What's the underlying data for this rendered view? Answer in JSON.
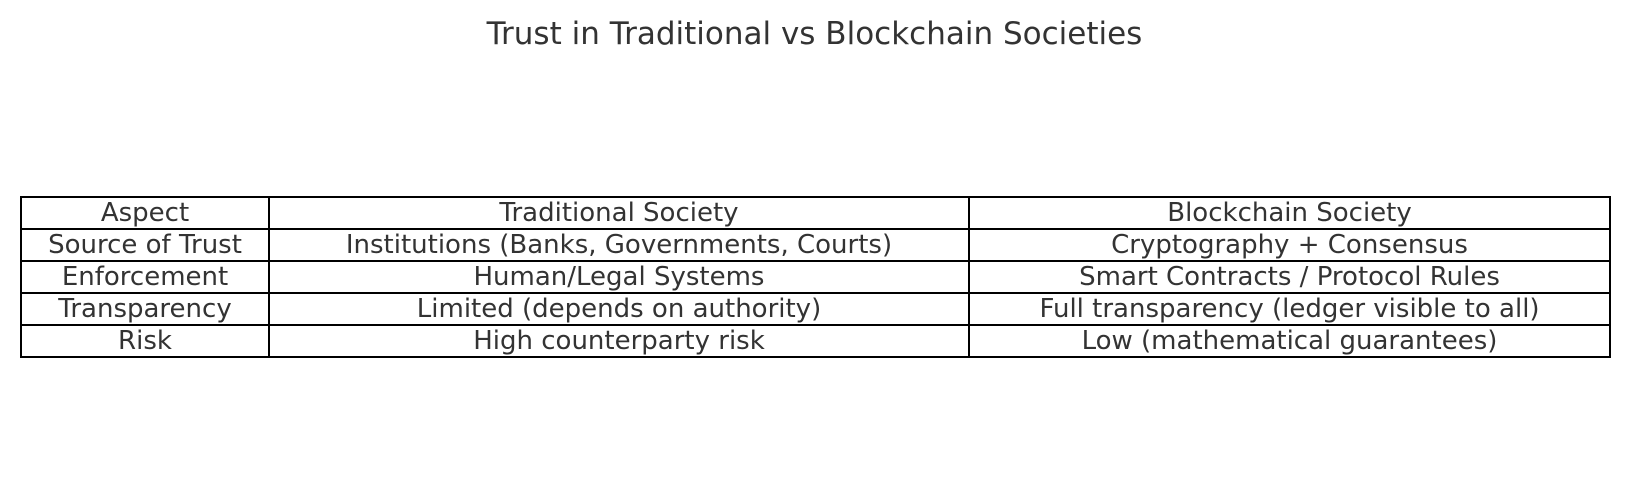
{
  "chart_data": {
    "type": "table",
    "title": "Trust in Traditional vs Blockchain Societies",
    "columns": [
      "Aspect",
      "Traditional Society",
      "Blockchain Society"
    ],
    "rows": [
      [
        "Source of Trust",
        "Institutions (Banks, Governments, Courts)",
        "Cryptography + Consensus"
      ],
      [
        "Enforcement",
        "Human/Legal Systems",
        "Smart Contracts / Protocol Rules"
      ],
      [
        "Transparency",
        "Limited (depends on authority)",
        "Full transparency (ledger visible to all)"
      ],
      [
        "Risk",
        "High counterparty risk",
        "Low (mathematical guarantees)"
      ]
    ]
  }
}
